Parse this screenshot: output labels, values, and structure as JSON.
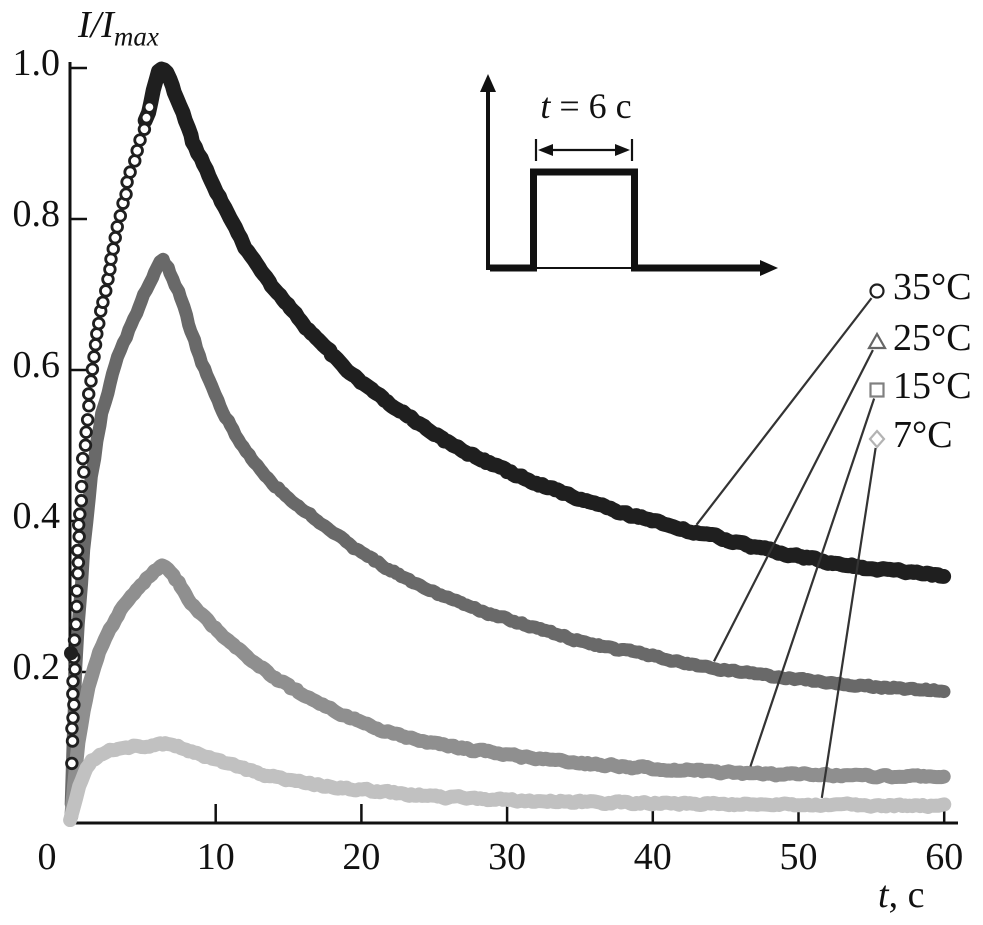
{
  "figure": {
    "y_axis_title": {
      "main": "I/I",
      "sub": "max"
    },
    "x_axis_title": {
      "italic": "t",
      "rest": ", c"
    },
    "inset_label": {
      "italic": "t",
      "rest": " = 6 c"
    }
  },
  "chart_data": {
    "type": "scatter",
    "title": "",
    "xlabel": "t, c",
    "ylabel": "I/I_max",
    "xlim": [
      0,
      60
    ],
    "ylim": [
      0,
      1.05
    ],
    "grid": false,
    "legend_position": "right-outside",
    "x_ticks": [
      0,
      10,
      20,
      30,
      40,
      50,
      60
    ],
    "y_ticks": [
      0.2,
      0.4,
      0.6,
      0.8,
      1.0
    ],
    "x_tick_labels": [
      "0",
      "10",
      "20",
      "30",
      "40",
      "50",
      "60"
    ],
    "y_tick_labels": [
      "0.2",
      "0.4",
      "0.6",
      "0.8",
      "1.0"
    ],
    "inset": {
      "type": "light-pulse",
      "label": "t = 6 c",
      "pulse_width_s": 6
    },
    "series": [
      {
        "name": "35°C",
        "marker": "circle",
        "color": "#1f1f1f",
        "marker_color": "#1f1f1f",
        "band_width": 15,
        "pointer_t": 43,
        "points": [
          [
            0,
            0
          ],
          [
            0.15,
            0.1
          ],
          [
            0.3,
            0.22
          ],
          [
            0.5,
            0.33
          ],
          [
            0.7,
            0.41
          ],
          [
            1,
            0.5
          ],
          [
            1.3,
            0.565
          ],
          [
            1.6,
            0.615
          ],
          [
            2,
            0.665
          ],
          [
            2.5,
            0.715
          ],
          [
            3,
            0.765
          ],
          [
            3.5,
            0.81
          ],
          [
            4,
            0.85
          ],
          [
            4.5,
            0.885
          ],
          [
            5,
            0.915
          ],
          [
            5.5,
            0.95
          ],
          [
            5.9,
            0.985
          ],
          [
            6.2,
            1.0
          ],
          [
            6.6,
            0.995
          ],
          [
            7,
            0.975
          ],
          [
            7.5,
            0.95
          ],
          [
            8,
            0.925
          ],
          [
            8.5,
            0.9
          ],
          [
            9,
            0.878
          ],
          [
            9.5,
            0.858
          ],
          [
            10,
            0.838
          ],
          [
            11,
            0.8
          ],
          [
            12,
            0.765
          ],
          [
            13,
            0.735
          ],
          [
            14,
            0.708
          ],
          [
            15,
            0.684
          ],
          [
            16,
            0.661
          ],
          [
            17,
            0.64
          ],
          [
            18,
            0.62
          ],
          [
            19,
            0.601
          ],
          [
            20,
            0.584
          ],
          [
            21,
            0.569
          ],
          [
            22,
            0.555
          ],
          [
            23,
            0.541
          ],
          [
            24,
            0.528
          ],
          [
            25,
            0.516
          ],
          [
            26,
            0.504
          ],
          [
            27,
            0.494
          ],
          [
            28,
            0.484
          ],
          [
            29,
            0.475
          ],
          [
            30,
            0.466
          ],
          [
            32,
            0.45
          ],
          [
            34,
            0.436
          ],
          [
            36,
            0.423
          ],
          [
            38,
            0.411
          ],
          [
            40,
            0.4
          ],
          [
            42,
            0.39
          ],
          [
            44,
            0.38
          ],
          [
            46,
            0.37
          ],
          [
            48,
            0.361
          ],
          [
            50,
            0.353
          ],
          [
            52,
            0.346
          ],
          [
            54,
            0.34
          ],
          [
            56,
            0.335
          ],
          [
            58,
            0.331
          ],
          [
            60,
            0.328
          ]
        ]
      },
      {
        "name": "25°C",
        "marker": "triangle",
        "color": "#696969",
        "marker_color": "#666666",
        "band_width": 13,
        "pointer_t": 44.2,
        "points": [
          [
            0,
            0
          ],
          [
            0.2,
            0.1
          ],
          [
            0.4,
            0.2
          ],
          [
            0.7,
            0.3
          ],
          [
            1,
            0.375
          ],
          [
            1.3,
            0.43
          ],
          [
            1.6,
            0.475
          ],
          [
            2,
            0.525
          ],
          [
            2.5,
            0.565
          ],
          [
            3,
            0.6
          ],
          [
            3.5,
            0.627
          ],
          [
            4,
            0.652
          ],
          [
            4.5,
            0.675
          ],
          [
            5,
            0.695
          ],
          [
            5.5,
            0.715
          ],
          [
            6,
            0.738
          ],
          [
            6.3,
            0.748
          ],
          [
            6.8,
            0.735
          ],
          [
            7.2,
            0.715
          ],
          [
            7.6,
            0.695
          ],
          [
            8,
            0.67
          ],
          [
            8.5,
            0.64
          ],
          [
            9,
            0.612
          ],
          [
            9.5,
            0.588
          ],
          [
            10,
            0.566
          ],
          [
            10.5,
            0.545
          ],
          [
            11,
            0.527
          ],
          [
            11.5,
            0.51
          ],
          [
            12,
            0.495
          ],
          [
            13,
            0.468
          ],
          [
            14,
            0.448
          ],
          [
            15,
            0.43
          ],
          [
            16,
            0.414
          ],
          [
            17,
            0.399
          ],
          [
            18,
            0.385
          ],
          [
            19,
            0.371
          ],
          [
            20,
            0.358
          ],
          [
            21,
            0.346
          ],
          [
            22,
            0.335
          ],
          [
            23,
            0.325
          ],
          [
            24,
            0.315
          ],
          [
            25,
            0.306
          ],
          [
            26,
            0.298
          ],
          [
            27,
            0.29
          ],
          [
            28,
            0.283
          ],
          [
            29,
            0.276
          ],
          [
            30,
            0.27
          ],
          [
            32,
            0.258
          ],
          [
            34,
            0.247
          ],
          [
            36,
            0.237
          ],
          [
            38,
            0.228
          ],
          [
            40,
            0.221
          ],
          [
            42,
            0.213
          ],
          [
            44,
            0.206
          ],
          [
            46,
            0.2
          ],
          [
            48,
            0.194
          ],
          [
            50,
            0.19
          ],
          [
            52,
            0.186
          ],
          [
            54,
            0.182
          ],
          [
            56,
            0.179
          ],
          [
            58,
            0.177
          ],
          [
            60,
            0.175
          ]
        ]
      },
      {
        "name": "15°C",
        "marker": "square",
        "color": "#8f8f8f",
        "marker_color": "#808080",
        "band_width": 14,
        "pointer_t": 46.7,
        "points": [
          [
            0,
            0
          ],
          [
            0.3,
            0.06
          ],
          [
            0.6,
            0.11
          ],
          [
            1,
            0.155
          ],
          [
            1.5,
            0.195
          ],
          [
            2,
            0.225
          ],
          [
            2.5,
            0.248
          ],
          [
            3,
            0.266
          ],
          [
            3.5,
            0.281
          ],
          [
            4,
            0.295
          ],
          [
            4.5,
            0.307
          ],
          [
            5,
            0.318
          ],
          [
            5.5,
            0.328
          ],
          [
            6,
            0.337
          ],
          [
            6.3,
            0.342
          ],
          [
            6.8,
            0.335
          ],
          [
            7.2,
            0.325
          ],
          [
            7.6,
            0.313
          ],
          [
            8,
            0.3
          ],
          [
            8.5,
            0.288
          ],
          [
            9,
            0.277
          ],
          [
            9.5,
            0.267
          ],
          [
            10,
            0.257
          ],
          [
            11,
            0.239
          ],
          [
            12,
            0.222
          ],
          [
            13,
            0.207
          ],
          [
            14,
            0.193
          ],
          [
            15,
            0.181
          ],
          [
            16,
            0.17
          ],
          [
            17,
            0.16
          ],
          [
            18,
            0.15
          ],
          [
            19,
            0.141
          ],
          [
            20,
            0.133
          ],
          [
            21,
            0.126
          ],
          [
            22,
            0.12
          ],
          [
            23,
            0.115
          ],
          [
            24,
            0.11
          ],
          [
            25,
            0.106
          ],
          [
            26,
            0.102
          ],
          [
            27,
            0.099
          ],
          [
            28,
            0.096
          ],
          [
            29,
            0.093
          ],
          [
            30,
            0.09
          ],
          [
            32,
            0.085
          ],
          [
            34,
            0.081
          ],
          [
            36,
            0.078
          ],
          [
            38,
            0.075
          ],
          [
            40,
            0.072
          ],
          [
            42,
            0.07
          ],
          [
            44,
            0.068
          ],
          [
            46,
            0.066
          ],
          [
            48,
            0.065
          ],
          [
            50,
            0.064
          ],
          [
            52,
            0.063
          ],
          [
            54,
            0.062
          ],
          [
            56,
            0.062
          ],
          [
            58,
            0.061
          ],
          [
            60,
            0.061
          ]
        ]
      },
      {
        "name": "7°C",
        "marker": "diamond",
        "color": "#c1c1c1",
        "marker_color": "#b3b3b3",
        "band_width": 14,
        "pointer_t": 51.6,
        "points": [
          [
            0,
            0
          ],
          [
            0.3,
            0.025
          ],
          [
            0.6,
            0.05
          ],
          [
            1,
            0.068
          ],
          [
            1.5,
            0.082
          ],
          [
            2,
            0.09
          ],
          [
            2.5,
            0.094
          ],
          [
            3,
            0.097
          ],
          [
            4,
            0.1
          ],
          [
            5,
            0.102
          ],
          [
            6,
            0.105
          ],
          [
            6.5,
            0.105
          ],
          [
            7,
            0.103
          ],
          [
            8,
            0.098
          ],
          [
            9,
            0.09
          ],
          [
            10,
            0.083
          ],
          [
            11,
            0.077
          ],
          [
            12,
            0.071
          ],
          [
            13,
            0.066
          ],
          [
            14,
            0.061
          ],
          [
            15,
            0.057
          ],
          [
            16,
            0.054
          ],
          [
            17,
            0.051
          ],
          [
            18,
            0.048
          ],
          [
            19,
            0.046
          ],
          [
            20,
            0.044
          ],
          [
            22,
            0.04
          ],
          [
            24,
            0.037
          ],
          [
            26,
            0.034
          ],
          [
            28,
            0.032
          ],
          [
            30,
            0.03
          ],
          [
            32,
            0.029
          ],
          [
            34,
            0.028
          ],
          [
            36,
            0.027
          ],
          [
            40,
            0.026
          ],
          [
            44,
            0.025
          ],
          [
            48,
            0.024
          ],
          [
            52,
            0.024
          ],
          [
            56,
            0.023
          ],
          [
            60,
            0.023
          ]
        ]
      }
    ],
    "legend": [
      "35°C",
      "25°C",
      "15°C",
      "7°C"
    ]
  }
}
